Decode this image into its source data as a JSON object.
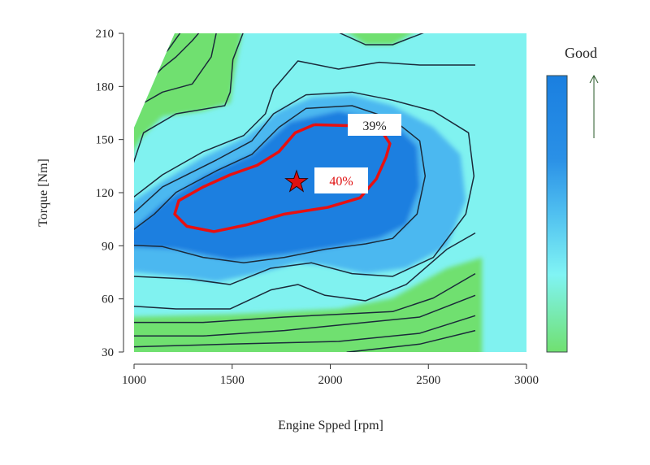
{
  "chart_data": {
    "type": "heatmap",
    "subtype": "contour",
    "title": "",
    "xlabel": "Engine Spped [rpm]",
    "ylabel": "Torque [Nm]",
    "xlim": [
      1000,
      3000
    ],
    "ylim": [
      30,
      210
    ],
    "xticks": [
      1000,
      1500,
      2000,
      2500,
      3000
    ],
    "yticks": [
      30,
      60,
      90,
      120,
      150,
      180,
      210
    ],
    "grid": false,
    "colorbar": {
      "label": "Good",
      "low_color": "#70e070",
      "mid_color": "#80f4f4",
      "high_color": "#1a7fe0",
      "direction": "up"
    },
    "annotations": [
      {
        "text": "39%",
        "color": "#000000",
        "rpm": 2180,
        "torque": 158
      },
      {
        "text": "40%",
        "color": "#e01010",
        "rpm": 2040,
        "torque": 128
      }
    ],
    "operating_point": {
      "rpm": 1828,
      "torque": 126,
      "marker": "star",
      "color": "#e01010"
    },
    "contour_40pct": {
      "level": "40%",
      "color": "#e81010",
      "rpm": [
        1918,
        1821,
        1738,
        1628,
        1490,
        1352,
        1228,
        1207,
        1269,
        1407,
        1573,
        1766,
        1987,
        2152,
        2235,
        2284,
        2304,
        2263,
        2180,
        1918
      ],
      "torque": [
        158.4,
        153.8,
        143.1,
        135.5,
        130.1,
        123.2,
        115.5,
        107.9,
        101,
        98,
        101.8,
        107.9,
        111.7,
        117.1,
        127.8,
        140,
        147.7,
        154.6,
        157.6,
        158.4
      ]
    }
  }
}
